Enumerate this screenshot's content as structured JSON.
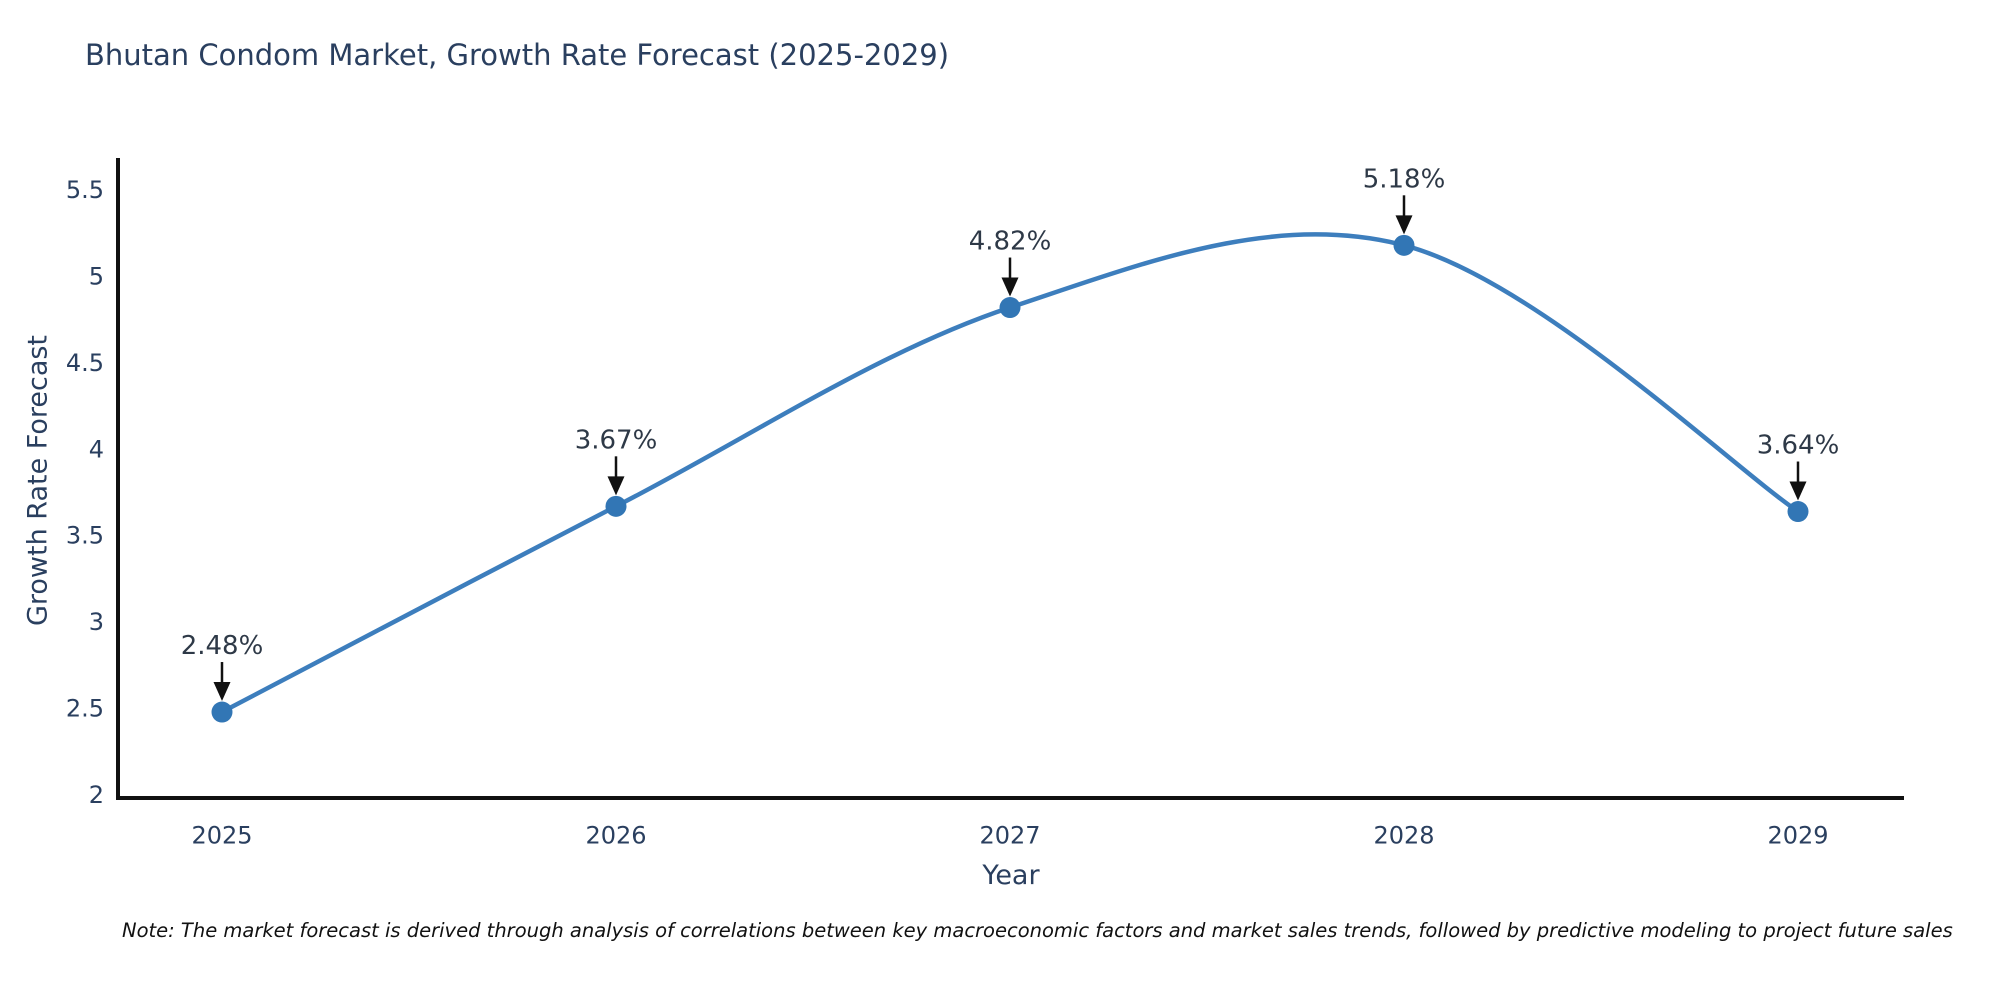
{
  "page": {
    "background": "#ffffff"
  },
  "chart_data": {
    "type": "line",
    "title": "Bhutan Condom Market, Growth Rate Forecast (2025-2029)",
    "xlabel": "Year",
    "ylabel": "Growth Rate Forecast",
    "x": [
      2025,
      2026,
      2027,
      2028,
      2029
    ],
    "values": [
      2.48,
      3.67,
      4.82,
      5.18,
      3.64
    ],
    "point_labels": [
      "2.48%",
      "3.67%",
      "4.82%",
      "5.18%",
      "3.64%"
    ],
    "yticks": [
      5.5,
      5,
      4.5,
      4,
      3.5,
      3,
      2.5,
      2
    ],
    "ylim": [
      1.97,
      5.69
    ],
    "grid": false,
    "legend_position": "none",
    "curve": "spline",
    "markers": true,
    "annotation_arrows": true,
    "line_color": "#3d7ebd",
    "marker_color": "#3276b5",
    "axis_color": "#111111",
    "label_color": "#2a3f5f",
    "annotation_color": "#2e3947"
  },
  "note": {
    "text": "Note: The market forecast is derived through analysis of correlations between key macroeconomic factors and market sales trends, followed by predictive modeling to project future sales"
  }
}
